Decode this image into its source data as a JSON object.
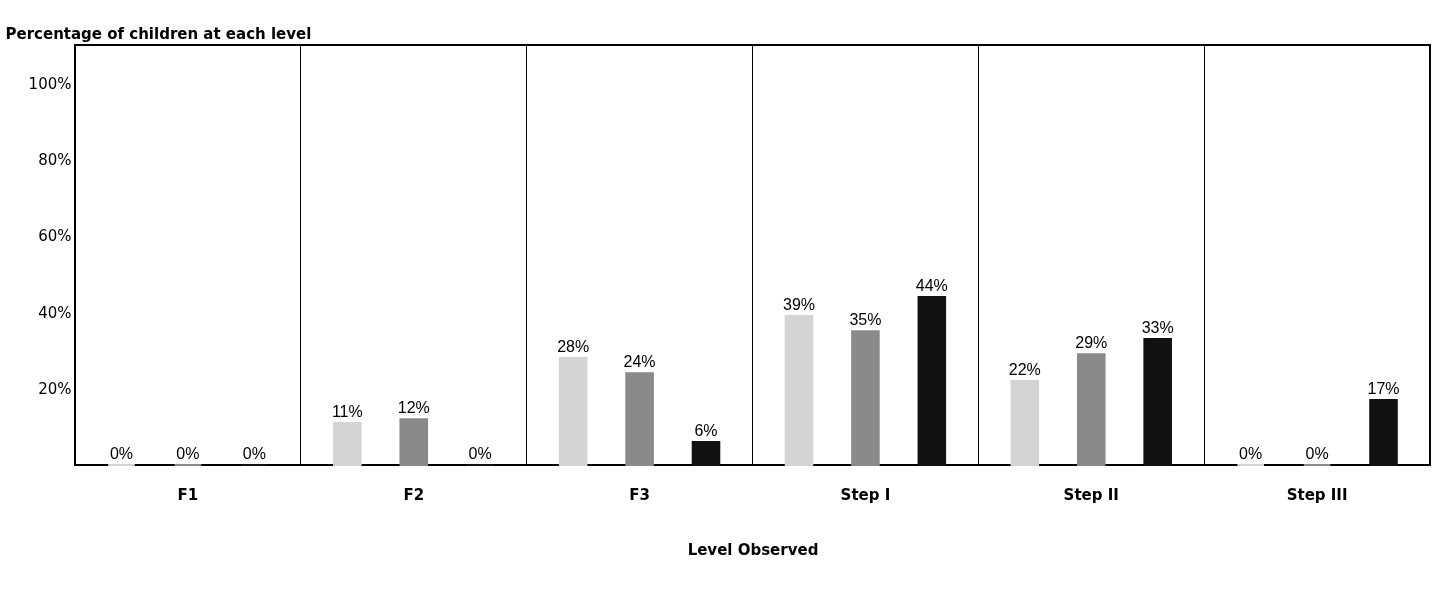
{
  "chart_data": {
    "type": "bar",
    "ylabel": "Percentage of children at each level",
    "xlabel": "Level Observed",
    "categories": [
      "F1",
      "F2",
      "F3",
      "Step I",
      "Step II",
      "Step III"
    ],
    "series": [
      {
        "color": "#d4d4d4",
        "values": [
          0,
          11,
          28,
          39,
          22,
          0
        ],
        "value_labels": [
          "0%",
          "11%",
          "28%",
          "39%",
          "22%",
          "0%"
        ]
      },
      {
        "color": "#8a8a8a",
        "values": [
          0,
          12,
          24,
          35,
          29,
          0
        ],
        "value_labels": [
          "0%",
          "12%",
          "24%",
          "35%",
          "29%",
          "0%"
        ]
      },
      {
        "color": "#111111",
        "values": [
          0,
          0,
          6,
          44,
          33,
          17
        ],
        "value_labels": [
          "0%",
          "0%",
          "6%",
          "44%",
          "33%",
          "17%"
        ]
      }
    ],
    "ylim": [
      0,
      110
    ],
    "yticks": [
      {
        "value": 20,
        "label": "20%"
      },
      {
        "value": 40,
        "label": "40%"
      },
      {
        "value": 60,
        "label": "60%"
      },
      {
        "value": 80,
        "label": "80%"
      },
      {
        "value": 100,
        "label": "100%"
      }
    ],
    "grid": "x",
    "legend": false
  }
}
